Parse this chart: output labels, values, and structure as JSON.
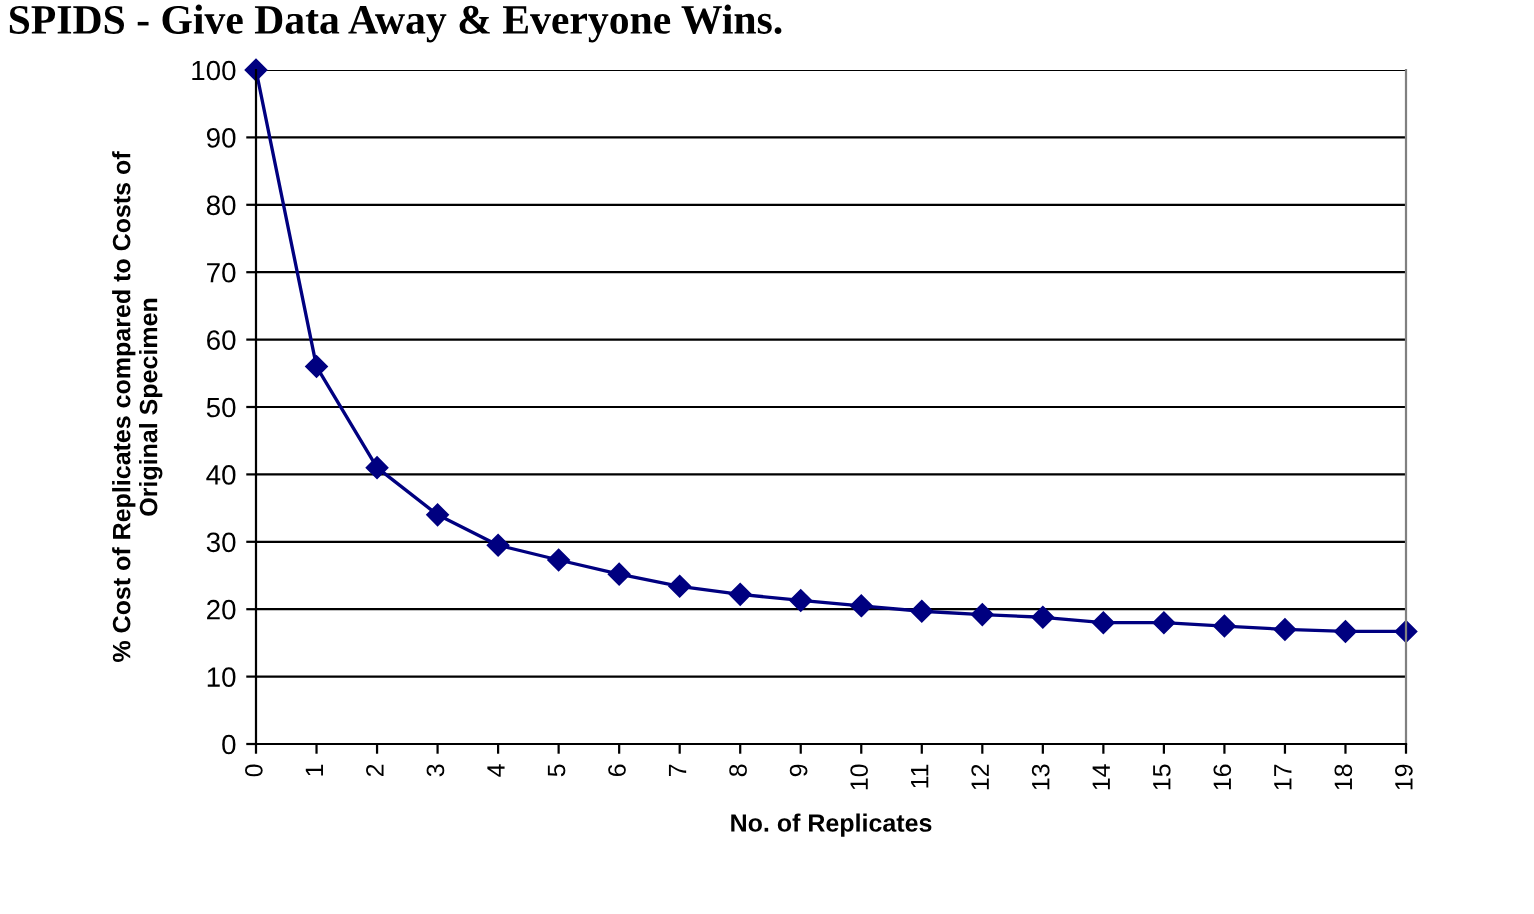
{
  "chart_data": {
    "type": "line",
    "title": "SPIDS - Give Data Away & Everyone Wins.",
    "xlabel": "No. of Replicates",
    "ylabel": "% Cost of Replicates compared to Costs of\nOriginal Specimen",
    "categories": [
      "0",
      "1",
      "2",
      "3",
      "4",
      "5",
      "6",
      "7",
      "8",
      "9",
      "10",
      "11",
      "12",
      "13",
      "14",
      "15",
      "16",
      "17",
      "18",
      "19"
    ],
    "series": [
      {
        "color": "#000080",
        "values": [
          100,
          56,
          41,
          34,
          29.5,
          27.3,
          25.2,
          23.4,
          22.2,
          21.3,
          20.5,
          19.7,
          19.2,
          18.8,
          18,
          18,
          17.5,
          17,
          16.7,
          16.7
        ]
      }
    ],
    "ylim": [
      0,
      100
    ],
    "yticks": [
      0,
      10,
      20,
      30,
      40,
      50,
      60,
      70,
      80,
      90,
      100
    ],
    "grid": "y",
    "marker": "diamond",
    "line_style": "solid"
  }
}
